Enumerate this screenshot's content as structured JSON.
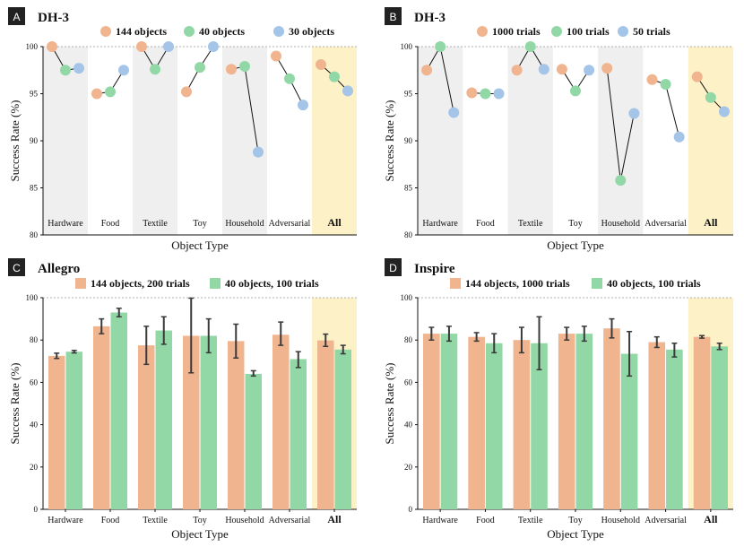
{
  "colors": {
    "orange": "#f0b48f",
    "green": "#92d8a7",
    "blue": "#a4c4e8",
    "shade": "#efefef",
    "highlight": "#fdf1c8",
    "error": "#3a3a3a",
    "line": "#111111",
    "refline": "#999999"
  },
  "chart_data": [
    {
      "id": "A",
      "letter": "A",
      "title": "DH-3",
      "type": "line",
      "categories": [
        "Hardware",
        "Food",
        "Textile",
        "Toy",
        "Household",
        "Adversarial",
        "All"
      ],
      "series": [
        {
          "name": "144 objects",
          "color": "orange",
          "values": [
            100,
            95.0,
            100,
            95.2,
            97.6,
            99.0,
            98.1
          ]
        },
        {
          "name": "40 objects",
          "color": "green",
          "values": [
            97.5,
            95.2,
            97.6,
            97.8,
            97.9,
            96.6,
            96.8
          ]
        },
        {
          "name": "30 objects",
          "color": "blue",
          "values": [
            97.7,
            97.5,
            100,
            100,
            88.8,
            93.8,
            95.3
          ]
        }
      ],
      "ylabel": "Success Rate (%)",
      "xlabel": "Object Type",
      "ylim": [
        80,
        100
      ],
      "yticks": [
        80,
        85,
        90,
        95,
        100
      ],
      "category_label_position": "inside-bottom",
      "shaded_categories": [
        0,
        2,
        4
      ],
      "highlight_category": 6
    },
    {
      "id": "B",
      "letter": "B",
      "title": "DH-3",
      "type": "line",
      "categories": [
        "Hardware",
        "Food",
        "Textile",
        "Toy",
        "Household",
        "Adversarial",
        "All"
      ],
      "series": [
        {
          "name": "1000 trials",
          "color": "orange",
          "values": [
            97.5,
            95.1,
            97.5,
            97.6,
            97.7,
            96.5,
            96.8
          ]
        },
        {
          "name": "100 trials",
          "color": "green",
          "values": [
            100,
            95.0,
            100,
            95.3,
            85.8,
            96.0,
            94.6
          ]
        },
        {
          "name": "50 trials",
          "color": "blue",
          "values": [
            93.0,
            95.0,
            97.6,
            97.5,
            92.9,
            90.4,
            93.1
          ]
        }
      ],
      "ylabel": "Success Rate (%)",
      "xlabel": "Object Type",
      "ylim": [
        80,
        100
      ],
      "yticks": [
        80,
        85,
        90,
        95,
        100
      ],
      "category_label_position": "inside-bottom",
      "shaded_categories": [
        0,
        2,
        4
      ],
      "highlight_category": 6
    },
    {
      "id": "C",
      "letter": "C",
      "title": "Allegro",
      "type": "bar",
      "categories": [
        "Hardware",
        "Food",
        "Textile",
        "Toy",
        "Household",
        "Adversarial",
        "All"
      ],
      "series": [
        {
          "name": "144 objects, 200 trials",
          "color": "orange",
          "values": [
            72.5,
            86.5,
            77.5,
            82.0,
            79.5,
            82.5,
            79.8
          ],
          "err_low": [
            71.3,
            83.0,
            68.5,
            64.5,
            71.5,
            77.5,
            77.0
          ],
          "err_high": [
            73.8,
            90.0,
            86.5,
            99.8,
            87.5,
            88.5,
            82.8
          ]
        },
        {
          "name": "40 objects, 100 trials",
          "color": "green",
          "values": [
            74.5,
            93.0,
            84.5,
            82.0,
            64.0,
            71.0,
            75.5
          ],
          "err_low": [
            73.9,
            91.0,
            78.0,
            74.0,
            63.0,
            67.0,
            73.5
          ],
          "err_high": [
            75.1,
            95.0,
            91.0,
            90.0,
            65.5,
            74.5,
            77.5
          ]
        }
      ],
      "ylabel": "Success Rate (%)",
      "xlabel": "Object Type",
      "ylim": [
        0,
        100
      ],
      "yticks": [
        0,
        20,
        40,
        60,
        80,
        100
      ],
      "category_label_position": "below",
      "shaded_categories": [],
      "highlight_category": 6
    },
    {
      "id": "D",
      "letter": "D",
      "title": "Inspire",
      "type": "bar",
      "categories": [
        "Hardware",
        "Food",
        "Textile",
        "Toy",
        "Household",
        "Adversarial",
        "All"
      ],
      "series": [
        {
          "name": "144 objects, 1000 trials",
          "color": "orange",
          "values": [
            83.0,
            81.5,
            80.0,
            83.0,
            85.5,
            79.0,
            81.5
          ],
          "err_low": [
            80.0,
            79.5,
            74.0,
            80.0,
            81.0,
            76.5,
            80.9
          ],
          "err_high": [
            86.0,
            83.5,
            86.0,
            86.0,
            90.0,
            81.5,
            82.1
          ]
        },
        {
          "name": "40 objects, 100 trials",
          "color": "green",
          "values": [
            83.0,
            78.5,
            78.5,
            83.0,
            73.5,
            75.5,
            77.0
          ],
          "err_low": [
            79.5,
            74.0,
            66.0,
            79.5,
            63.0,
            72.0,
            75.5
          ],
          "err_high": [
            86.5,
            83.0,
            91.0,
            86.5,
            84.0,
            78.5,
            78.5
          ]
        }
      ],
      "ylabel": "Success Rate (%)",
      "xlabel": "Object Type",
      "ylim": [
        0,
        100
      ],
      "yticks": [
        0,
        20,
        40,
        60,
        80,
        100
      ],
      "category_label_position": "below",
      "shaded_categories": [],
      "highlight_category": 6
    }
  ]
}
